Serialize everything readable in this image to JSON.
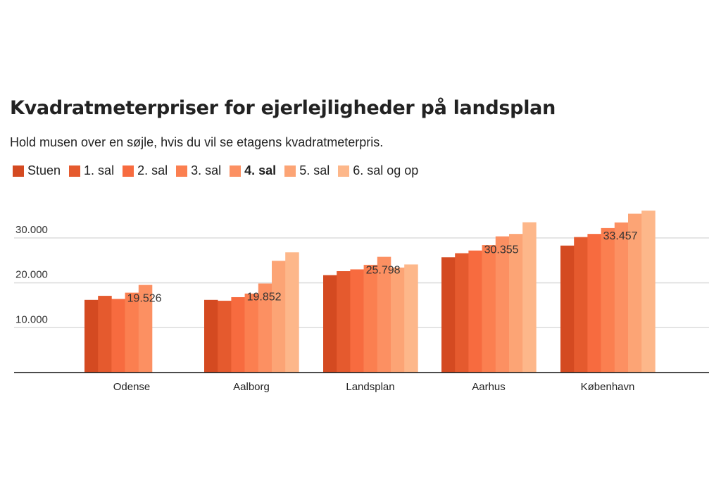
{
  "chart_data": {
    "type": "bar",
    "title": "Kvadratmeterpriser for ejerlejligheder på landsplan",
    "subtitle": "Hold musen over en søjle, hvis du vil se etagens kvadratmeterpris.",
    "categories": [
      "Odense",
      "Aalborg",
      "Landsplan",
      "Aarhus",
      "København"
    ],
    "series": [
      {
        "name": "Stuen",
        "color": "#d44a21",
        "values": [
          16200,
          16200,
          21700,
          25700,
          28300
        ]
      },
      {
        "name": "1. sal",
        "color": "#e55a2e",
        "values": [
          17100,
          16000,
          22600,
          26600,
          30200
        ]
      },
      {
        "name": "2. sal",
        "color": "#f76b3f",
        "values": [
          16400,
          16800,
          23000,
          27200,
          30900
        ]
      },
      {
        "name": "3. sal",
        "color": "#fb7f50",
        "values": [
          17800,
          17600,
          24000,
          28400,
          32200
        ]
      },
      {
        "name": "4. sal",
        "color": "#fc9062",
        "values": [
          19526,
          19852,
          25798,
          30355,
          33457
        ]
      },
      {
        "name": "5. sal",
        "color": "#fca475",
        "values": [
          null,
          24900,
          23400,
          30900,
          35400
        ]
      },
      {
        "name": "6. sal og op",
        "color": "#fdb78a",
        "values": [
          null,
          26800,
          24100,
          33500,
          36100
        ]
      }
    ],
    "highlighted_series": "4. sal",
    "data_labels": [
      "19.526",
      "19.852",
      "25.798",
      "30.355",
      "33.457"
    ],
    "yticks": [
      "10.000",
      "20.000",
      "30.000"
    ],
    "ytick_values": [
      10000,
      20000,
      30000
    ],
    "ylim": [
      0,
      40000
    ],
    "grid": true,
    "legend": "top-left"
  }
}
